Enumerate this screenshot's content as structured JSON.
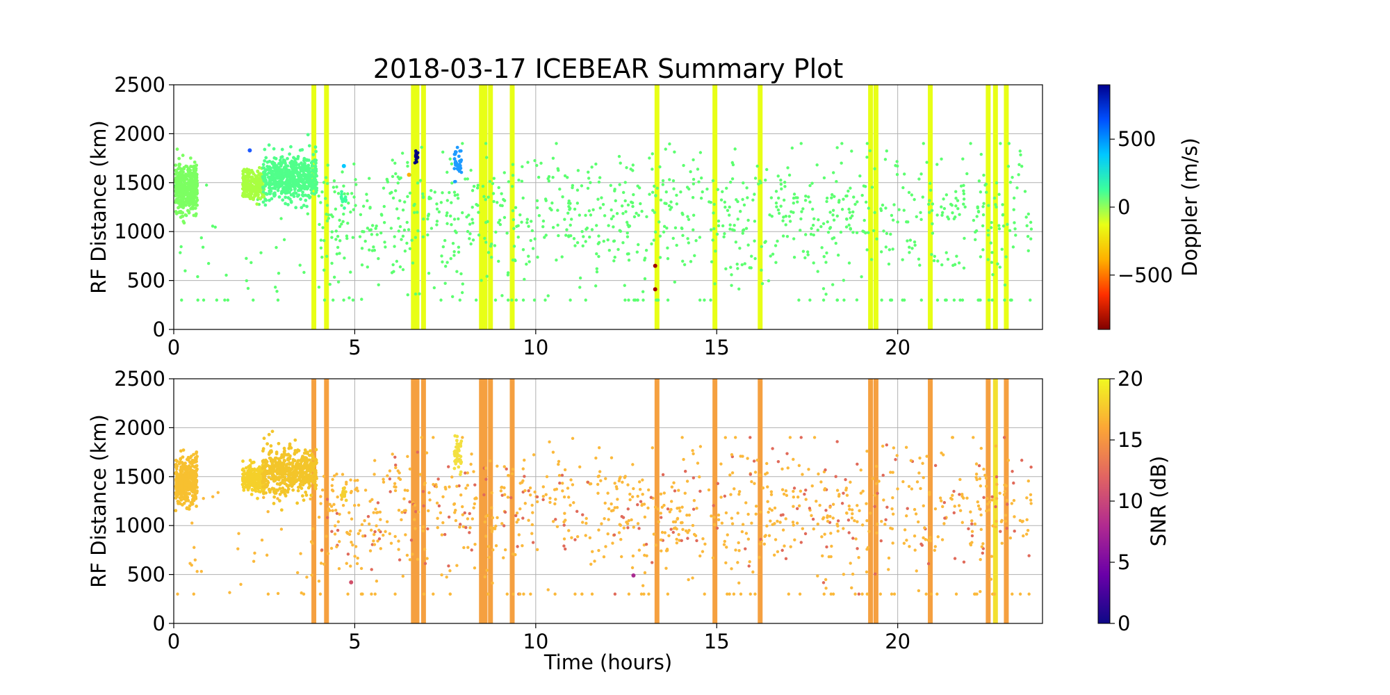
{
  "figure": {
    "title": "2018-03-17 ICEBEAR Summary Plot"
  },
  "chart_data": [
    {
      "type": "scatter",
      "panel": "top",
      "title": "2018-03-17 ICEBEAR Summary Plot",
      "xlabel": "",
      "ylabel": "RF Distance (km)",
      "xlim": [
        0,
        24
      ],
      "ylim": [
        0,
        2500
      ],
      "x_ticks": [
        0,
        5,
        10,
        15,
        20
      ],
      "y_ticks": [
        0,
        500,
        1000,
        1500,
        2000,
        2500
      ],
      "grid": true,
      "color_variable": "Doppler",
      "colorbar": {
        "label": "Doppler (m/s)",
        "range": [
          -900,
          900
        ],
        "ticks": [
          500,
          0,
          -500
        ],
        "tick_labels": [
          "500",
          "0",
          "−500"
        ],
        "colormap": "jet_r",
        "stops": [
          "#00008f",
          "#0050ff",
          "#00c8ff",
          "#3cff9c",
          "#e8ff16",
          "#ffb000",
          "#ff3000",
          "#800000"
        ]
      },
      "vertical_bands": [
        {
          "x": 3.87,
          "color": "#e8ff16"
        },
        {
          "x": 4.22,
          "color": "#e8ff16"
        },
        {
          "x": 6.62,
          "color": "#e8ff16"
        },
        {
          "x": 6.72,
          "color": "#e8ff16"
        },
        {
          "x": 6.9,
          "color": "#e8ff16"
        },
        {
          "x": 8.5,
          "color": "#e8ff16"
        },
        {
          "x": 8.6,
          "color": "#e8ff16"
        },
        {
          "x": 8.75,
          "color": "#e8ff16"
        },
        {
          "x": 9.35,
          "color": "#e8ff16"
        },
        {
          "x": 13.35,
          "color": "#e8ff16"
        },
        {
          "x": 14.95,
          "color": "#e8ff16"
        },
        {
          "x": 16.2,
          "color": "#e8ff16"
        },
        {
          "x": 19.25,
          "color": "#e8ff16"
        },
        {
          "x": 19.4,
          "color": "#e8ff16"
        },
        {
          "x": 20.9,
          "color": "#e8ff16"
        },
        {
          "x": 22.5,
          "color": "#e8ff16"
        },
        {
          "x": 22.7,
          "color": "#e8ff16"
        },
        {
          "x": 23.0,
          "color": "#e8ff16"
        }
      ],
      "clusters": [
        {
          "x": 0.35,
          "y": 1450,
          "dx": 0.3,
          "dy": 230,
          "n": 420,
          "color": "#7cff62"
        },
        {
          "x": 2.2,
          "y": 1480,
          "dx": 0.3,
          "dy": 150,
          "n": 220,
          "color": "#a8ff40"
        },
        {
          "x": 3.2,
          "y": 1550,
          "dx": 0.75,
          "dy": 230,
          "n": 520,
          "color": "#50ff8a"
        },
        {
          "x": 4.7,
          "y": 1320,
          "dx": 0.08,
          "dy": 60,
          "n": 16,
          "color": "#3cff9c"
        },
        {
          "x": 7.85,
          "y": 1700,
          "dx": 0.1,
          "dy": 180,
          "n": 40,
          "color": "#1e9bff"
        },
        {
          "x": 6.7,
          "y": 1760,
          "dx": 0.05,
          "dy": 70,
          "n": 14,
          "color": "#00007f"
        }
      ],
      "points": [
        {
          "x": 2.1,
          "y": 1830,
          "color": "#1e5aff"
        },
        {
          "x": 4.7,
          "y": 1670,
          "color": "#00c8ff"
        },
        {
          "x": 6.5,
          "y": 1580,
          "color": "#ffb000"
        },
        {
          "x": 13.3,
          "y": 650,
          "color": "#a00000"
        },
        {
          "x": 13.3,
          "y": 410,
          "color": "#a00000"
        }
      ],
      "background_scatter": {
        "n": 950,
        "color": "#5cff70",
        "x_range": [
          0,
          24
        ],
        "y_range": [
          300,
          1900
        ]
      }
    },
    {
      "type": "scatter",
      "panel": "bottom",
      "title": "",
      "xlabel": "Time (hours)",
      "ylabel": "RF Distance (km)",
      "xlim": [
        0,
        24
      ],
      "ylim": [
        0,
        2500
      ],
      "x_ticks": [
        0,
        5,
        10,
        15,
        20
      ],
      "y_ticks": [
        0,
        500,
        1000,
        1500,
        2000,
        2500
      ],
      "grid": true,
      "color_variable": "SNR",
      "colorbar": {
        "label": "SNR (dB)",
        "range": [
          0,
          20
        ],
        "ticks": [
          0,
          5,
          10,
          15,
          20
        ],
        "tick_labels": [
          "0",
          "5",
          "10",
          "15",
          "20"
        ],
        "colormap": "plasma_r",
        "stops": [
          "#f0f921",
          "#fca636",
          "#e16462",
          "#b12a90",
          "#6a00a8",
          "#0d0887"
        ]
      },
      "vertical_bands": [
        {
          "x": 3.87,
          "color": "#f5a040"
        },
        {
          "x": 4.22,
          "color": "#f5a040"
        },
        {
          "x": 6.62,
          "color": "#f5a040"
        },
        {
          "x": 6.72,
          "color": "#f5a040"
        },
        {
          "x": 6.9,
          "color": "#f5a040"
        },
        {
          "x": 8.5,
          "color": "#f5a040"
        },
        {
          "x": 8.6,
          "color": "#f5a040"
        },
        {
          "x": 8.75,
          "color": "#f5a040"
        },
        {
          "x": 9.35,
          "color": "#f5a040"
        },
        {
          "x": 13.35,
          "color": "#f5a040"
        },
        {
          "x": 14.95,
          "color": "#f5a040"
        },
        {
          "x": 16.2,
          "color": "#f5a040"
        },
        {
          "x": 19.25,
          "color": "#f5a040"
        },
        {
          "x": 19.4,
          "color": "#f5a040"
        },
        {
          "x": 20.9,
          "color": "#f5a040"
        },
        {
          "x": 22.5,
          "color": "#f5a040"
        },
        {
          "x": 22.7,
          "color": "#f2e030"
        },
        {
          "x": 23.0,
          "color": "#f5a040"
        }
      ],
      "clusters": [
        {
          "x": 0.35,
          "y": 1450,
          "dx": 0.3,
          "dy": 230,
          "n": 420,
          "color": "#f7c030"
        },
        {
          "x": 2.2,
          "y": 1480,
          "dx": 0.3,
          "dy": 150,
          "n": 220,
          "color": "#f5d02a"
        },
        {
          "x": 3.2,
          "y": 1550,
          "dx": 0.75,
          "dy": 230,
          "n": 520,
          "color": "#f3c52a"
        },
        {
          "x": 4.7,
          "y": 1320,
          "dx": 0.08,
          "dy": 60,
          "n": 16,
          "color": "#f5d030"
        },
        {
          "x": 7.85,
          "y": 1700,
          "dx": 0.1,
          "dy": 180,
          "n": 40,
          "color": "#f3e040"
        }
      ],
      "points": [
        {
          "x": 4.9,
          "y": 420,
          "color": "#d0506a"
        },
        {
          "x": 12.7,
          "y": 490,
          "color": "#a82a90"
        }
      ],
      "background_scatter": {
        "n": 950,
        "color": "#fbb93c",
        "x_range": [
          0,
          24
        ],
        "y_range": [
          300,
          1900
        ],
        "accent_color": "#e06a5a"
      }
    }
  ]
}
